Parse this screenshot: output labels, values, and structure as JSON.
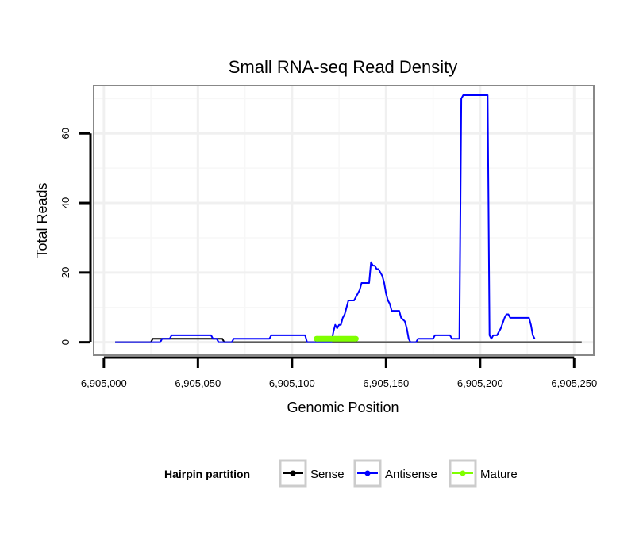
{
  "chart_data": {
    "type": "line",
    "title": "Small RNA-seq Read Density",
    "xlabel": "Genomic Position",
    "ylabel": "Total Reads",
    "xlim": [
      6904995,
      6905260
    ],
    "ylim": [
      -3.5,
      73.5
    ],
    "grid": true,
    "x_ticks": [
      {
        "value": 6905000,
        "label": "6,905,000"
      },
      {
        "value": 6905050,
        "label": "6,905,050"
      },
      {
        "value": 6905100,
        "label": "6,905,100"
      },
      {
        "value": 6905150,
        "label": "6,905,150"
      },
      {
        "value": 6905200,
        "label": "6,905,200"
      },
      {
        "value": 6905250,
        "label": "6,905,250"
      }
    ],
    "y_ticks": [
      {
        "value": 0,
        "label": "0"
      },
      {
        "value": 20,
        "label": "20"
      },
      {
        "value": 40,
        "label": "40"
      },
      {
        "value": 60,
        "label": "60"
      }
    ],
    "legend": {
      "title": "Hairpin partition",
      "position": "bottom",
      "entries": [
        "Sense",
        "Antisense",
        "Mature"
      ]
    },
    "series": [
      {
        "name": "Sense",
        "color": "#000000",
        "points": [
          [
            6905006,
            0
          ],
          [
            6905025,
            0
          ],
          [
            6905026,
            1
          ],
          [
            6905063,
            1
          ],
          [
            6905064,
            0
          ],
          [
            6905254,
            0
          ]
        ]
      },
      {
        "name": "Antisense",
        "color": "#0000ff",
        "points": [
          [
            6905006,
            0
          ],
          [
            6905030,
            0
          ],
          [
            6905031,
            1
          ],
          [
            6905035,
            1
          ],
          [
            6905036,
            2
          ],
          [
            6905057,
            2
          ],
          [
            6905058,
            1
          ],
          [
            6905060,
            1
          ],
          [
            6905061,
            0
          ],
          [
            6905068,
            0
          ],
          [
            6905069,
            1
          ],
          [
            6905088,
            1
          ],
          [
            6905089,
            2
          ],
          [
            6905107,
            2
          ],
          [
            6905108,
            0
          ],
          [
            6905121,
            0
          ],
          [
            6905122,
            3
          ],
          [
            6905123,
            5
          ],
          [
            6905124,
            4
          ],
          [
            6905125,
            5
          ],
          [
            6905126,
            5
          ],
          [
            6905127,
            7
          ],
          [
            6905128,
            8
          ],
          [
            6905129,
            10
          ],
          [
            6905130,
            12
          ],
          [
            6905133,
            12
          ],
          [
            6905134,
            13
          ],
          [
            6905136,
            15
          ],
          [
            6905137,
            17
          ],
          [
            6905141,
            17
          ],
          [
            6905142,
            23
          ],
          [
            6905143,
            22
          ],
          [
            6905144,
            22
          ],
          [
            6905145,
            21
          ],
          [
            6905146,
            21
          ],
          [
            6905147,
            20
          ],
          [
            6905148,
            19
          ],
          [
            6905149,
            17
          ],
          [
            6905150,
            14
          ],
          [
            6905151,
            12
          ],
          [
            6905152,
            11
          ],
          [
            6905153,
            9
          ],
          [
            6905157,
            9
          ],
          [
            6905158,
            7
          ],
          [
            6905160,
            6
          ],
          [
            6905161,
            4
          ],
          [
            6905162,
            1
          ],
          [
            6905163,
            0
          ],
          [
            6905166,
            0
          ],
          [
            6905167,
            1
          ],
          [
            6905175,
            1
          ],
          [
            6905176,
            2
          ],
          [
            6905184,
            2
          ],
          [
            6905185,
            1
          ],
          [
            6905189,
            1
          ],
          [
            6905190,
            70
          ],
          [
            6905191,
            71
          ],
          [
            6905204,
            71
          ],
          [
            6905205,
            2
          ],
          [
            6905206,
            1
          ],
          [
            6905207,
            2
          ],
          [
            6905209,
            2
          ],
          [
            6905210,
            3
          ],
          [
            6905211,
            4
          ],
          [
            6905213,
            7
          ],
          [
            6905214,
            8
          ],
          [
            6905215,
            8
          ],
          [
            6905216,
            7
          ],
          [
            6905226,
            7
          ],
          [
            6905227,
            5
          ],
          [
            6905228,
            2
          ],
          [
            6905229,
            1
          ]
        ]
      },
      {
        "name": "Mature",
        "color": "#7fff00",
        "points": [
          [
            6905113,
            1
          ],
          [
            6905134,
            1
          ]
        ]
      }
    ]
  }
}
